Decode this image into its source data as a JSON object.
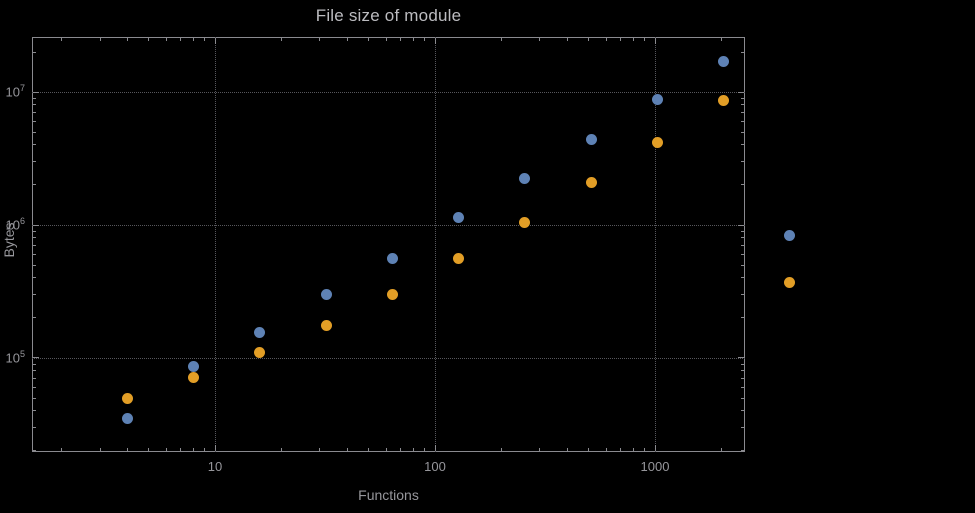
{
  "chart_data": {
    "type": "scatter",
    "title": "File size of module",
    "xlabel": "Functions",
    "ylabel": "Bytes",
    "x_scale": "log",
    "y_scale": "log",
    "x_log_range": [
      0.168,
      3.409
    ],
    "y_log_range": [
      4.293,
      7.414
    ],
    "x_gridlines": [
      10,
      100,
      1000
    ],
    "y_gridlines": [
      100000,
      1000000,
      10000000
    ],
    "x_ticks": [
      {
        "value": 10,
        "label": "10"
      },
      {
        "value": 100,
        "label": "100"
      },
      {
        "value": 1000,
        "label": "1000"
      }
    ],
    "y_ticks": [
      {
        "value": 100000,
        "base": "10",
        "exp": "5"
      },
      {
        "value": 1000000,
        "base": "10",
        "exp": "6"
      },
      {
        "value": 10000000,
        "base": "10",
        "exp": "7"
      }
    ],
    "grid_style": "dotted",
    "legend": "none",
    "x": [
      4,
      8,
      16,
      32,
      64,
      128,
      256,
      512,
      1024,
      2048,
      4096
    ],
    "series": [
      {
        "name": "blue",
        "color": "#5e82b5",
        "values": [
          35000,
          86000,
          155000,
          300000,
          560000,
          1130000,
          2250000,
          4400000,
          8800000,
          17000000,
          840000
        ]
      },
      {
        "name": "orange",
        "color": "#e29e26",
        "values": [
          50000,
          71000,
          110000,
          177000,
          300000,
          560000,
          1050000,
          2100000,
          4200000,
          8600000,
          370000
        ]
      }
    ]
  }
}
